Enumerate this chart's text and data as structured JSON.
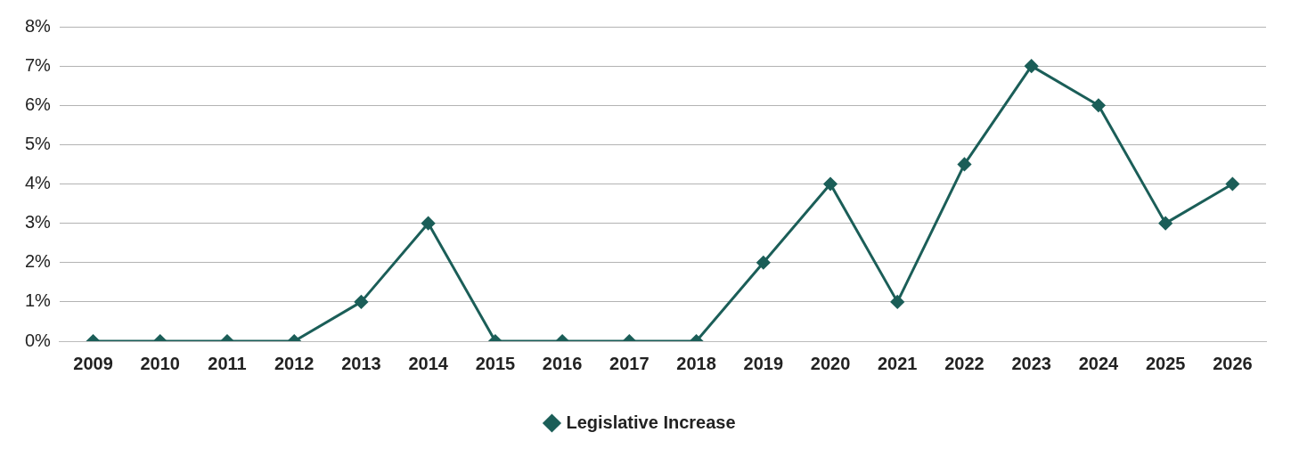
{
  "chart_data": {
    "type": "line",
    "categories": [
      "2009",
      "2010",
      "2011",
      "2012",
      "2013",
      "2014",
      "2015",
      "2016",
      "2017",
      "2018",
      "2019",
      "2020",
      "2021",
      "2022",
      "2023",
      "2024",
      "2025",
      "2026"
    ],
    "series": [
      {
        "name": "Legislative Increase",
        "color": "#1b5e58",
        "values": [
          0,
          0,
          0,
          0,
          1,
          3,
          0,
          0,
          0,
          0,
          2,
          4,
          1,
          4.5,
          7,
          6,
          3,
          4
        ]
      }
    ],
    "ylim": [
      0,
      8
    ],
    "yticks": [
      {
        "value": 0,
        "label": "0%"
      },
      {
        "value": 1,
        "label": "1%"
      },
      {
        "value": 2,
        "label": "2%"
      },
      {
        "value": 3,
        "label": "3%"
      },
      {
        "value": 4,
        "label": "4%"
      },
      {
        "value": 5,
        "label": "5%"
      },
      {
        "value": 6,
        "label": "6%"
      },
      {
        "value": 7,
        "label": "7%"
      },
      {
        "value": 8,
        "label": "8%"
      }
    ],
    "grid": "y",
    "legend": "bottom",
    "marker": "diamond",
    "line_style": "solid"
  }
}
